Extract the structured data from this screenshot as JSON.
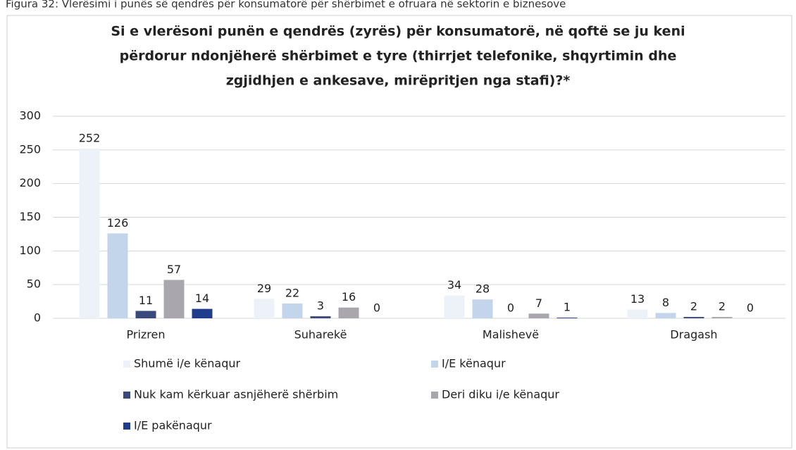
{
  "caption": "Figura 32: Vlerësimi i punës së qendrës për konsumatorë për shërbimet e ofruara në sektorin e biznesove",
  "chart_data": {
    "type": "bar",
    "title": [
      "Si e vlerësoni punën e qendrës (zyrës) për konsumatorë, në qoftë se ju keni",
      "përdorur ndonjëherë shërbimet e tyre (thirrjet telefonike, shqyrtimin dhe",
      "zgjidhjen e ankesave, mirëpritjen nga stafi)?*"
    ],
    "categories": [
      "Prizren",
      "Suharekë",
      "Malishevë",
      "Dragash"
    ],
    "series": [
      {
        "name": "Shumë i/e kënaqur",
        "color": "#edf2f8",
        "values": [
          252,
          29,
          34,
          13
        ]
      },
      {
        "name": "I/E kënaqur",
        "color": "#c3d5ea",
        "values": [
          126,
          22,
          28,
          8
        ]
      },
      {
        "name": "Nuk kam kërkuar asnjëherë shërbim",
        "color": "#3a4a7c",
        "values": [
          11,
          3,
          0,
          2
        ]
      },
      {
        "name": "Deri diku i/e kënaqur",
        "color": "#a9a7ad",
        "values": [
          57,
          16,
          7,
          2
        ]
      },
      {
        "name": "I/E pakënaqur",
        "color": "#1f3d8c",
        "values": [
          14,
          0,
          1,
          0
        ]
      }
    ],
    "ylim": [
      0,
      300
    ],
    "yticks": [
      0,
      50,
      100,
      150,
      200,
      250,
      300
    ],
    "grid": true
  }
}
